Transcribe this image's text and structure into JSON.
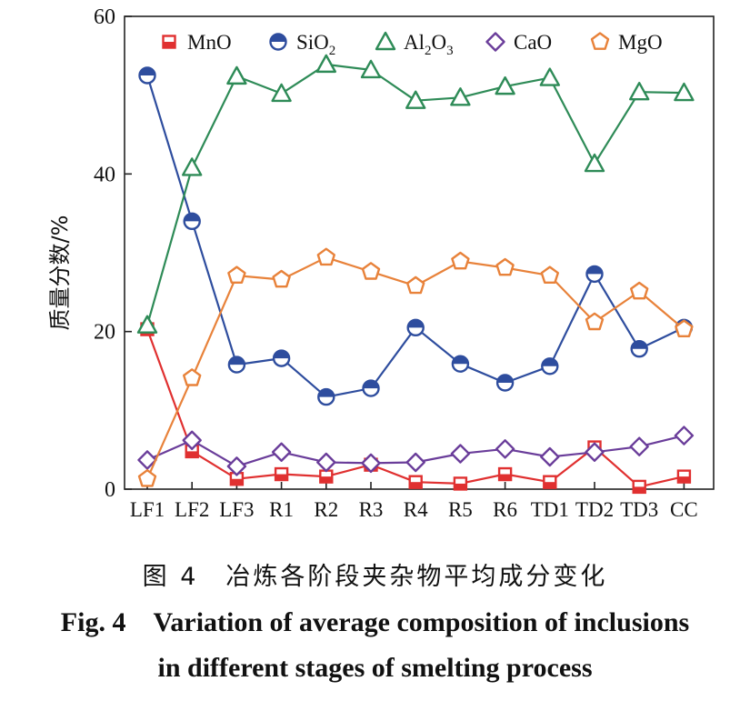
{
  "chart_data": {
    "type": "line",
    "ylabel": "质量分数/%",
    "xlabel": "",
    "ylim": [
      0,
      60
    ],
    "yticks": [
      0,
      20,
      40,
      60
    ],
    "categories": [
      "LF1",
      "LF2",
      "LF3",
      "R1",
      "R2",
      "R3",
      "R4",
      "R5",
      "R6",
      "TD1",
      "TD2",
      "TD3",
      "CC"
    ],
    "legend_position": "top",
    "series": [
      {
        "name": "MnO",
        "name_base": "MnO",
        "name_sub": "",
        "name_tail": "",
        "color": "#e03030",
        "marker": "square-half",
        "values": [
          20.3,
          4.8,
          1.3,
          1.9,
          1.6,
          3.1,
          0.9,
          0.7,
          1.9,
          0.9,
          5.3,
          0.3,
          1.6
        ]
      },
      {
        "name": "SiO2",
        "name_base": "SiO",
        "name_sub": "2",
        "name_tail": "",
        "color": "#2e4d9e",
        "marker": "circle-half",
        "values": [
          52.5,
          34.0,
          15.8,
          16.6,
          11.7,
          12.8,
          20.5,
          15.9,
          13.5,
          15.6,
          27.3,
          17.8,
          20.5
        ]
      },
      {
        "name": "Al2O3",
        "name_base": "Al",
        "name_sub": "2",
        "name_tail": "O",
        "name_sub2": "3",
        "color": "#2e8b57",
        "marker": "triangle",
        "values": [
          20.8,
          40.8,
          52.4,
          50.2,
          53.9,
          53.2,
          49.3,
          49.7,
          51.1,
          52.2,
          41.3,
          50.4,
          50.3
        ]
      },
      {
        "name": "CaO",
        "name_base": "CaO",
        "name_sub": "",
        "name_tail": "",
        "color": "#6a3d9a",
        "marker": "diamond",
        "values": [
          3.7,
          6.2,
          2.9,
          4.7,
          3.4,
          3.3,
          3.4,
          4.5,
          5.1,
          4.1,
          4.7,
          5.4,
          6.8
        ]
      },
      {
        "name": "MgO",
        "name_base": "MgO",
        "name_sub": "",
        "name_tail": "",
        "color": "#e8823a",
        "marker": "pentagon",
        "values": [
          1.3,
          14.1,
          27.1,
          26.6,
          29.4,
          27.6,
          25.8,
          28.9,
          28.1,
          27.1,
          21.2,
          25.1,
          20.3
        ]
      }
    ]
  },
  "caption": {
    "cn_label": "图 4",
    "cn_text": "冶炼各阶段夹杂物平均成分变化",
    "en_label": "Fig. 4",
    "en_line1": "Variation of average composition of inclusions",
    "en_line2": "in different stages of smelting process"
  }
}
